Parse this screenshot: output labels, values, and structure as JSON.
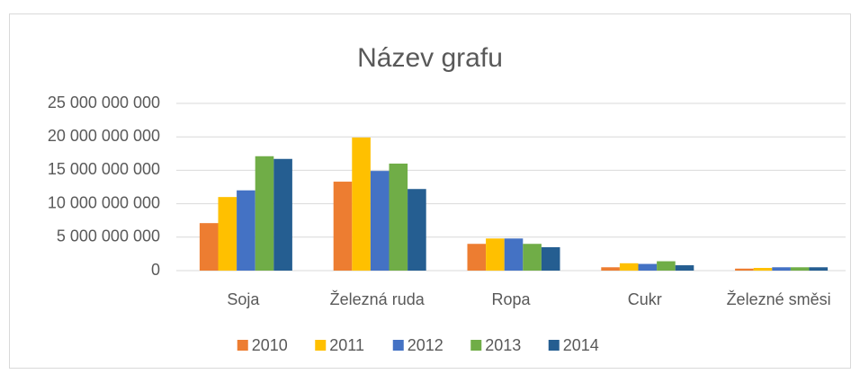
{
  "chart_data": {
    "type": "bar",
    "title": "Název grafu",
    "categories": [
      "Soja",
      "Železná ruda",
      "Ropa",
      "Cukr",
      "Železné směsi"
    ],
    "series": [
      {
        "name": "2010",
        "color": "#ed7d31",
        "values": [
          7100000000,
          13300000000,
          4000000000,
          500000000,
          300000000
        ]
      },
      {
        "name": "2011",
        "color": "#ffc000",
        "values": [
          11000000000,
          19900000000,
          4800000000,
          1100000000,
          400000000
        ]
      },
      {
        "name": "2012",
        "color": "#4472c4",
        "values": [
          12000000000,
          14900000000,
          4800000000,
          1000000000,
          500000000
        ]
      },
      {
        "name": "2013",
        "color": "#70ad47",
        "values": [
          17100000000,
          16000000000,
          4000000000,
          1400000000,
          500000000
        ]
      },
      {
        "name": "2014",
        "color": "#255e91",
        "values": [
          16700000000,
          12200000000,
          3500000000,
          800000000,
          500000000
        ]
      }
    ],
    "ylim": [
      0,
      25000000000
    ],
    "yticks": [
      {
        "value": 0,
        "label": "0"
      },
      {
        "value": 5000000000,
        "label": "5 000 000 000"
      },
      {
        "value": 10000000000,
        "label": "10 000 000 000"
      },
      {
        "value": 15000000000,
        "label": "15 000 000 000"
      },
      {
        "value": 20000000000,
        "label": "20 000 000 000"
      },
      {
        "value": 25000000000,
        "label": "25 000 000 000"
      }
    ],
    "grid": true,
    "legend": "bottom"
  }
}
